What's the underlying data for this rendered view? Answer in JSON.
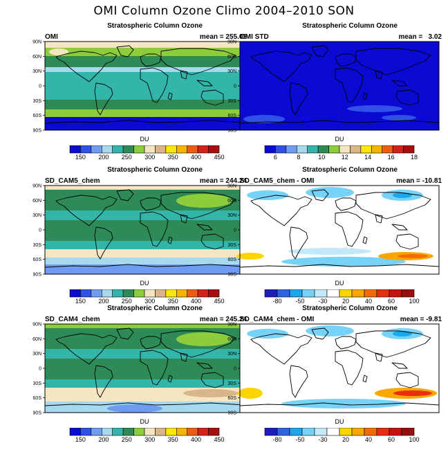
{
  "title": "OMI Column Ozone Climo 2004–2010 SON",
  "lat_labels": [
    "90N",
    "60N",
    "30N",
    "0",
    "30S",
    "60S",
    "90S"
  ],
  "colorbars": {
    "abs": {
      "label": "DU",
      "colors": [
        "#0a0ad2",
        "#3050e8",
        "#6f9cf2",
        "#a6d8ee",
        "#33b5a9",
        "#2e8a57",
        "#8dcc3a",
        "#f5e6c2",
        "#d9b68a",
        "#fbe70f",
        "#f7b400",
        "#ef5d12",
        "#d6201a",
        "#a90d0d"
      ],
      "tick_labels": [
        "150",
        "200",
        "250",
        "300",
        "350",
        "400",
        "450"
      ]
    },
    "std": {
      "label": "DU",
      "colors": [
        "#0a0ad2",
        "#3050e8",
        "#6f9cf2",
        "#a6d8ee",
        "#33b5a9",
        "#2e8a57",
        "#8dcc3a",
        "#f5e6c2",
        "#d9b68a",
        "#fbe70f",
        "#f7b400",
        "#ef5d12",
        "#d6201a",
        "#a90d0d"
      ],
      "tick_labels": [
        "6",
        "8",
        "10",
        "12",
        "14",
        "16",
        "18"
      ]
    },
    "diff": {
      "label": "DU",
      "colors": [
        "#1d1ec2",
        "#2f63e6",
        "#1aa7ee",
        "#76d2f6",
        "#c1e9f9",
        "#ffffff",
        "#ffd500",
        "#f9a600",
        "#f36b00",
        "#e82f0d",
        "#c6120f",
        "#9a0d0d"
      ],
      "tick_labels": [
        "-80",
        "-50",
        "-30",
        "20",
        "40",
        "60",
        "100"
      ]
    }
  },
  "panels": [
    {
      "id": "omi",
      "title": "Stratospheric Column Ozone",
      "left": "OMI",
      "right": "mean = 255.05",
      "scale": "abs"
    },
    {
      "id": "omi_std",
      "title": "Stratospheric Column Ozone",
      "left": "OMI STD",
      "right": "mean =   3.02",
      "scale": "std"
    },
    {
      "id": "cam5",
      "title": "Stratospheric Column Ozone",
      "left": "SD_CAM5_chem",
      "right": "mean = 244.24",
      "scale": "abs"
    },
    {
      "id": "cam5_diff",
      "title": "Stratospheric Column Ozone",
      "left": "SD_CAM5_chem - OMI",
      "right": "mean = -10.81",
      "scale": "diff"
    },
    {
      "id": "cam4",
      "title": "Stratospheric Column Ozone",
      "left": "SD_CAM4_chem",
      "right": "mean = 245.24",
      "scale": "abs"
    },
    {
      "id": "cam4_diff",
      "title": "Stratospheric Column Ozone",
      "left": "SD_CAM4_chem - OMI",
      "right": "mean = -9.81",
      "scale": "diff"
    }
  ]
}
